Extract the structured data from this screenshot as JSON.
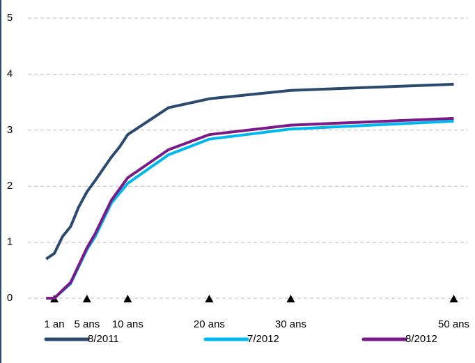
{
  "chart_data": {
    "type": "line",
    "xlim": [
      -2.25,
      51.75
    ],
    "xticks": [
      {
        "value": 1,
        "label": "1 an"
      },
      {
        "value": 5,
        "label": "5 ans"
      },
      {
        "value": 10,
        "label": "10 ans"
      },
      {
        "value": 20,
        "label": "20 ans"
      },
      {
        "value": 30,
        "label": "30 ans"
      },
      {
        "value": 50,
        "label": "50 ans"
      }
    ],
    "ylim": [
      0,
      5
    ],
    "yticks": [
      0,
      1,
      2,
      3,
      4,
      5
    ],
    "grid": true,
    "series": [
      {
        "name": "8/2011",
        "color": "#2c4a6e",
        "x": [
          0,
          1,
          2,
          3,
          4,
          5,
          6,
          8,
          9,
          10,
          15,
          20,
          30,
          50
        ],
        "values": [
          0.7,
          0.8,
          1.1,
          1.28,
          1.63,
          1.9,
          2.1,
          2.52,
          2.7,
          2.92,
          3.4,
          3.56,
          3.71,
          3.82
        ]
      },
      {
        "name": "7/2012",
        "color": "#00b8f0",
        "x": [
          0,
          1,
          3,
          5,
          6,
          8,
          10,
          15,
          20,
          30,
          50
        ],
        "values": [
          0,
          0,
          0.26,
          0.87,
          1.1,
          1.7,
          2.05,
          2.56,
          2.84,
          3.02,
          3.16
        ]
      },
      {
        "name": "8/2012",
        "color": "#7a1a88",
        "x": [
          0,
          1,
          3,
          5,
          6,
          8,
          10,
          15,
          20,
          30,
          50
        ],
        "values": [
          0,
          0,
          0.28,
          0.9,
          1.15,
          1.75,
          2.15,
          2.65,
          2.92,
          3.09,
          3.21
        ]
      }
    ]
  }
}
